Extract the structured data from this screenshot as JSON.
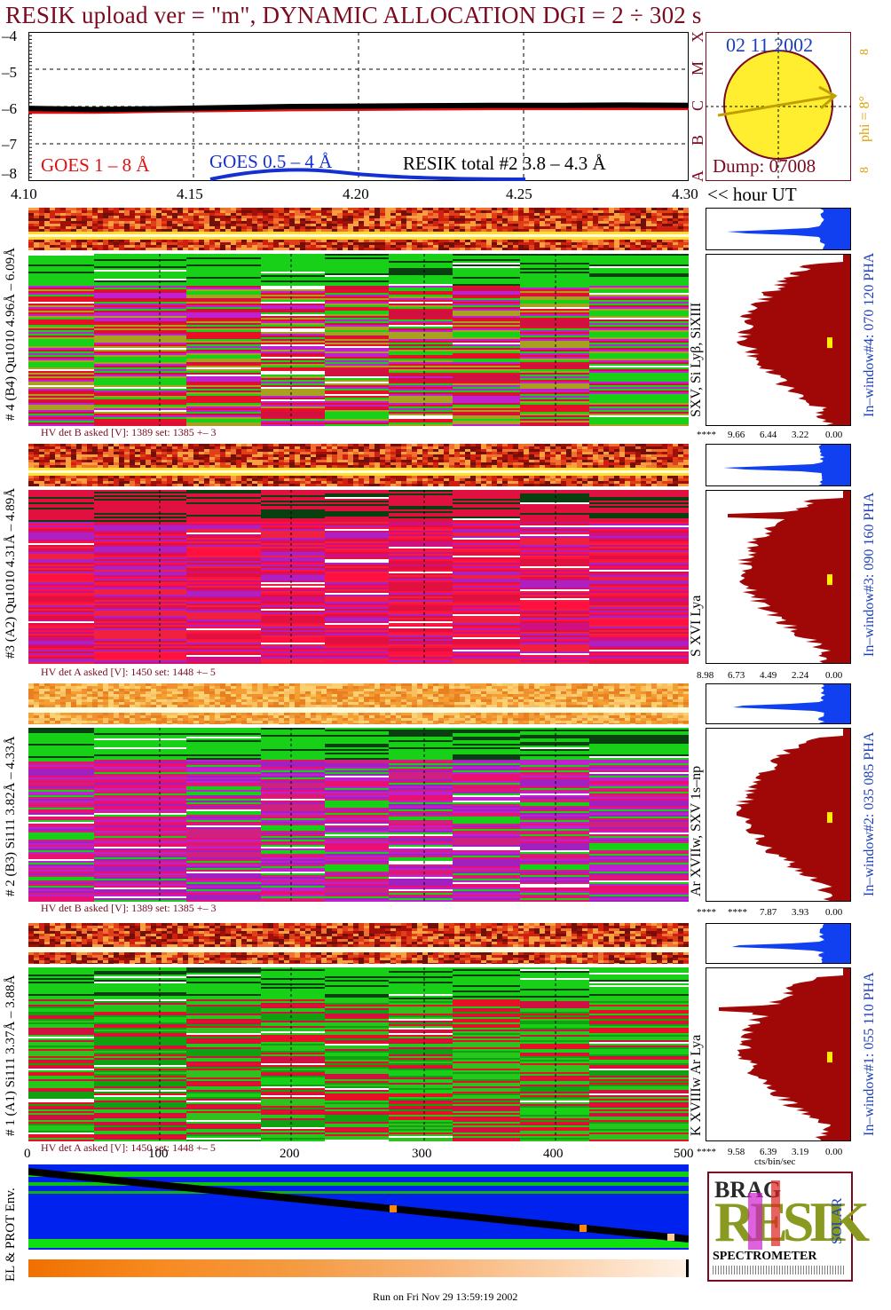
{
  "title": "RESIK upload ver = \"m\", DYNAMIC ALLOCATION  DGI =   2 ÷ 302 s",
  "colors": {
    "dark_red": "#7a0a1e",
    "goes_red": "#e01010",
    "goes_blue": "#1430d0",
    "orange": "#e0a000",
    "blue_text": "#1a3fb8",
    "yellow": "#ffee30"
  },
  "goes": {
    "legend_red": "GOES 1 – 8 Å",
    "legend_blue": "GOES 0.5 – 4 Å",
    "legend_total": "RESIK total #2  3.8 – 4.3 Å",
    "y_ticks": [
      "–4",
      "–5",
      "–6",
      "–7",
      "–8"
    ],
    "x_ticks": [
      "4.10",
      "4.15",
      "4.20",
      "4.25",
      "4.30"
    ],
    "x_unit": "<< hour UT",
    "right_letters": [
      "A",
      "B",
      "C",
      "M",
      "X"
    ]
  },
  "chart_data": {
    "type": "line",
    "title": "RESIK upload ver = \"m\", DYNAMIC ALLOCATION  DGI =   2 ÷ 302 s",
    "xlabel": "<< hour UT",
    "ylabel": "",
    "xlim": [
      4.1,
      4.3
    ],
    "ylim": [
      -8,
      -4
    ],
    "series": [
      {
        "name": "GOES 1 – 8 Å",
        "x": [
          4.1,
          4.12,
          4.14,
          4.16,
          4.18,
          4.2,
          4.22,
          4.24,
          4.26,
          4.28,
          4.3
        ],
        "values": [
          -6.15,
          -6.15,
          -6.12,
          -6.1,
          -6.08,
          -6.07,
          -6.06,
          -6.05,
          -6.05,
          -6.05,
          -6.05
        ]
      },
      {
        "name": "RESIK total #2  3.8 – 4.3 Å",
        "x": [
          4.1,
          4.12,
          4.14,
          4.16,
          4.18,
          4.2,
          4.22,
          4.24,
          4.26,
          4.28,
          4.3
        ],
        "values": [
          -6.05,
          -6.08,
          -6.06,
          -6.03,
          -6.0,
          -5.99,
          -5.98,
          -5.97,
          -5.97,
          -5.96,
          -5.97
        ]
      }
    ]
  },
  "sun": {
    "date": "02 11 2002",
    "dump": "Dump: 07008",
    "phi": "phi =  8°",
    "rot1": "8",
    "rot2": "8"
  },
  "panels": [
    {
      "id": "4",
      "left_label": "# 4 (B4) Qu1010 4.96Å – 6.09Å",
      "hv": "HV det B asked [V]:  1389 set:  1385 +–    3",
      "line_label": "SXV, Si Lyβ, SiXIII",
      "window": "In–window#4:  070 120 PHA",
      "hist_ticks": [
        "****",
        "9.66",
        "6.44",
        "3.22",
        "0.00"
      ]
    },
    {
      "id": "3",
      "left_label": "#3 (A2) Qu1010  4.31Å – 4.89Å",
      "hv": "HV det A asked [V]:  1450 set:  1448 +–    5",
      "line_label": "S XVI Lya",
      "window": "In–window#3:  090 160 PHA",
      "hist_ticks": [
        "8.98",
        "6.73",
        "4.49",
        "2.24",
        "0.00"
      ]
    },
    {
      "id": "2",
      "left_label": "# 2 (B3) Si111  3.82Å – 4.33Å",
      "hv": "HV det B asked [V]:  1389 set:  1385 +–    3",
      "line_label": "Ar XVIIw, SXV 1s–np",
      "window": "In–window#2:  035 085 PHA",
      "hist_ticks": [
        "****",
        "****",
        "7.87",
        "3.93",
        "0.00"
      ]
    },
    {
      "id": "1",
      "left_label": "# 1 (A1) Si111  3.37Å – 3.88Å",
      "hv": "HV det A asked [V]:  1450 set:  1448 +–    5",
      "line_label": "K XVIIIw  Ar Lya",
      "window": "In–window#1:  055 110 PHA",
      "hist_ticks": [
        "****",
        "9.58",
        "6.39",
        "3.19",
        "0.00"
      ]
    }
  ],
  "bottom": {
    "x_ticks": [
      "0",
      "100",
      "200",
      "300",
      "400",
      "500"
    ],
    "hist_unit": "cts/bin/sec",
    "env_label": "EL & PROT Env.",
    "footer": "Run on Fri Nov 29 13:59:19 2002"
  },
  "logo": {
    "word": "RESIK",
    "small": "BRAG",
    "solar": "SOLAR",
    "bottom": "SPECTROMETER"
  }
}
